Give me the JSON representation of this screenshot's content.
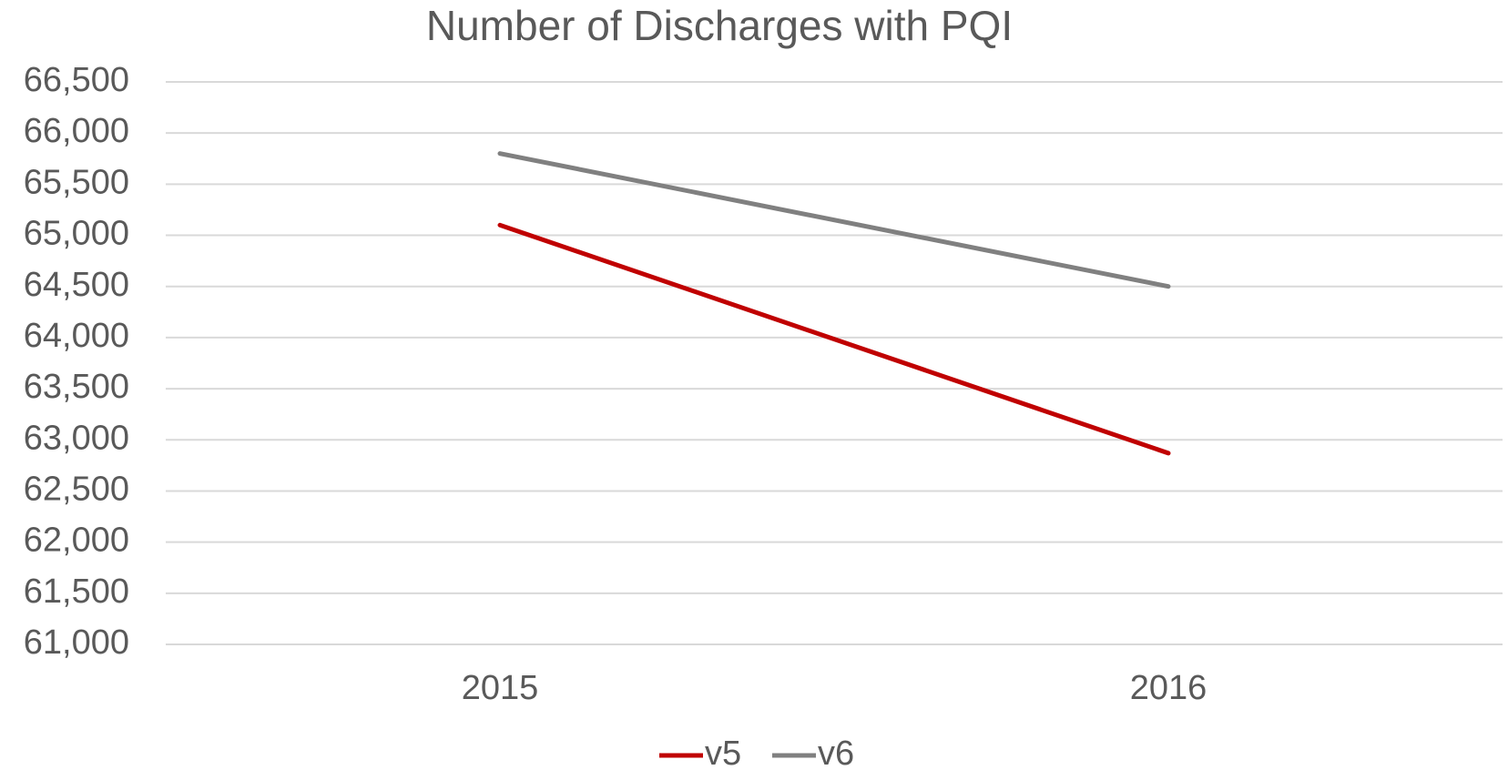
{
  "chart_data": {
    "type": "line",
    "title": "Number of Discharges with PQI",
    "categories": [
      "2015",
      "2016"
    ],
    "series": [
      {
        "name": "v5",
        "color": "#c00000",
        "values": [
          65100,
          62870
        ]
      },
      {
        "name": "v6",
        "color": "#808080",
        "values": [
          65800,
          64500
        ]
      }
    ],
    "ylim": [
      61000,
      66500
    ],
    "yticks": [
      {
        "value": 61000,
        "label": "61,000"
      },
      {
        "value": 61500,
        "label": "61,500"
      },
      {
        "value": 62000,
        "label": "62,000"
      },
      {
        "value": 62500,
        "label": "62,500"
      },
      {
        "value": 63000,
        "label": "63,000"
      },
      {
        "value": 63500,
        "label": "63,500"
      },
      {
        "value": 64000,
        "label": "64,000"
      },
      {
        "value": 64500,
        "label": "64,500"
      },
      {
        "value": 65000,
        "label": "65,000"
      },
      {
        "value": 65500,
        "label": "65,500"
      },
      {
        "value": 66000,
        "label": "66,000"
      },
      {
        "value": 66500,
        "label": "66,500"
      }
    ],
    "grid": true,
    "legend": "bottom"
  }
}
